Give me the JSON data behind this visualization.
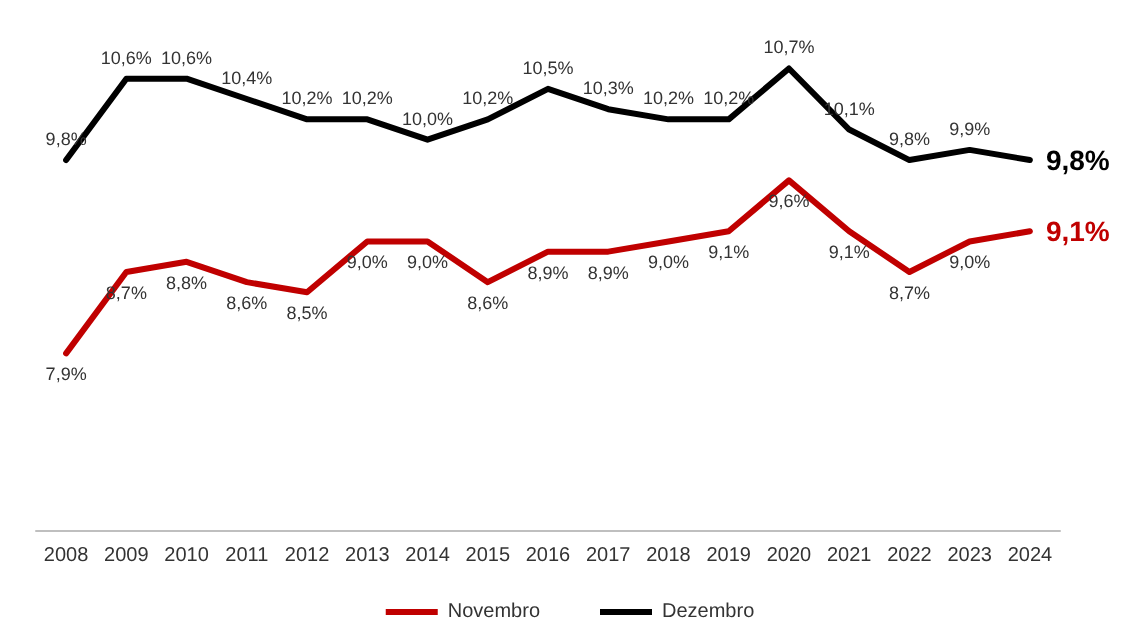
{
  "chart_data": {
    "type": "line",
    "categories": [
      "2008",
      "2009",
      "2010",
      "2011",
      "2012",
      "2013",
      "2014",
      "2015",
      "2016",
      "2017",
      "2018",
      "2019",
      "2020",
      "2021",
      "2022",
      "2023",
      "2024"
    ],
    "series": [
      {
        "name": "Novembro",
        "color": "#c00000",
        "values": [
          7.9,
          8.7,
          8.8,
          8.6,
          8.5,
          9.0,
          9.0,
          8.6,
          8.9,
          8.9,
          9.0,
          9.1,
          9.6,
          9.1,
          8.7,
          9.0,
          9.1
        ],
        "value_labels": [
          "7,9%",
          "8,7%",
          "8,8%",
          "8,6%",
          "8,5%",
          "9,0%",
          "9,0%",
          "8,6%",
          "8,9%",
          "8,9%",
          "9,0%",
          "9,1%",
          "9,6%",
          "9,1%",
          "8,7%",
          "9,0%",
          "9,1%"
        ]
      },
      {
        "name": "Dezembro",
        "color": "#000000",
        "values": [
          9.8,
          10.6,
          10.6,
          10.4,
          10.2,
          10.2,
          10.0,
          10.2,
          10.5,
          10.3,
          10.2,
          10.2,
          10.7,
          10.1,
          9.8,
          9.9,
          9.8
        ],
        "value_labels": [
          "9,8%",
          "10,6%",
          "10,6%",
          "10,4%",
          "10,2%",
          "10,2%",
          "10,0%",
          "10,2%",
          "10,5%",
          "10,3%",
          "10,2%",
          "10,2%",
          "10,7%",
          "10,1%",
          "9,8%",
          "9,9%",
          "9,8%"
        ]
      }
    ],
    "legend": "bottom",
    "grid": false,
    "marker": "none",
    "line_style": "solid"
  }
}
